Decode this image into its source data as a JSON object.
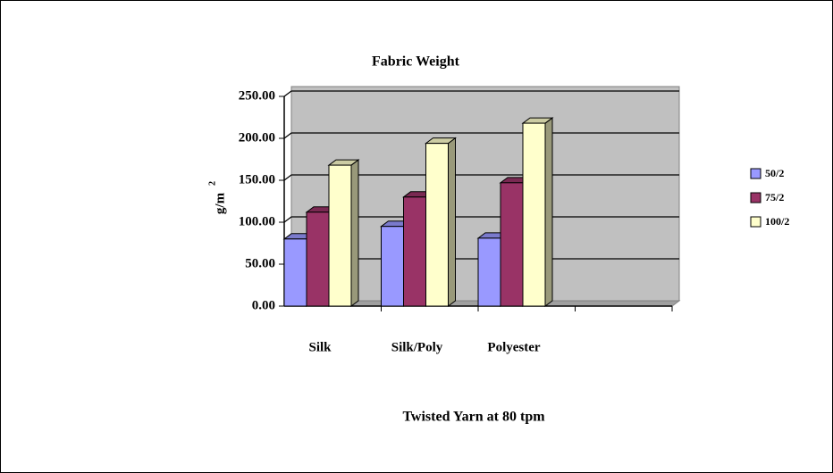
{
  "chart_data": {
    "type": "bar3d",
    "title": "Fabric Weight",
    "x_label": "Twisted Yarn at 80 tpm",
    "y_label": {
      "text": "g/m",
      "superscript": "2"
    },
    "categories": [
      "Silk",
      "Silk/Poly",
      "Polyester",
      null
    ],
    "series": [
      {
        "name": "50/2",
        "color": "#9999ff",
        "values": [
          80,
          95,
          81,
          null
        ]
      },
      {
        "name": "75/2",
        "color": "#993366",
        "values": [
          112,
          130,
          147,
          null
        ]
      },
      {
        "name": "100/2",
        "color": "#ffffcc",
        "values": [
          168,
          194,
          218,
          null
        ]
      }
    ],
    "ylim": [
      0,
      250
    ],
    "yticks": [
      {
        "value": 0,
        "label": "0.00"
      },
      {
        "value": 50,
        "label": "50.00"
      },
      {
        "value": 100,
        "label": "100.00"
      },
      {
        "value": 150,
        "label": "150.00"
      },
      {
        "value": 200,
        "label": "200.00"
      },
      {
        "value": 250,
        "label": "250.00"
      }
    ],
    "grid": true,
    "legend": "right"
  }
}
